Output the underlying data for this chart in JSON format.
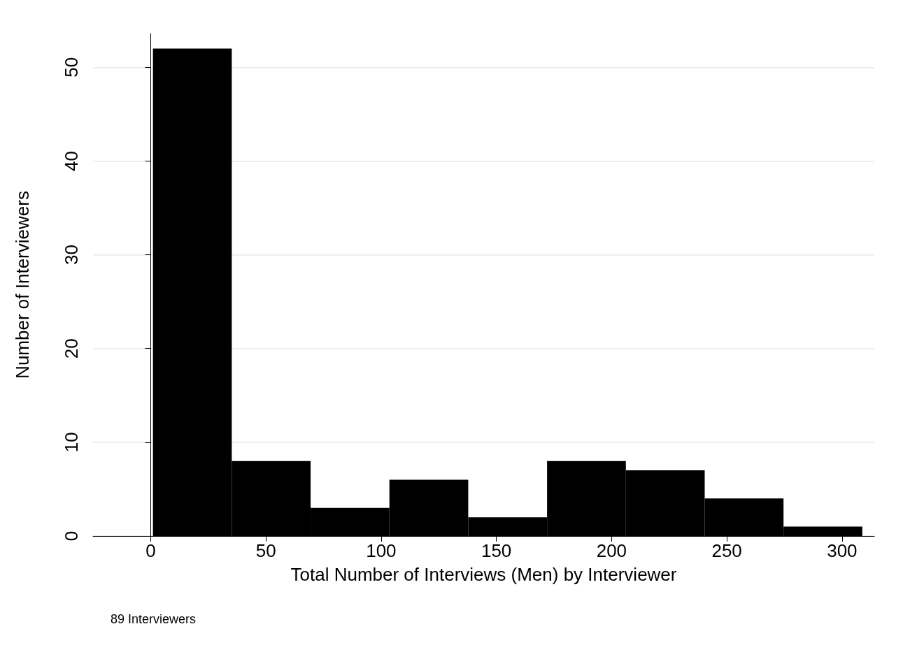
{
  "chart_data": {
    "type": "histogram",
    "xlabel": "Total Number of Interviews (Men) by Interviewer",
    "ylabel": "Number of Interviewers",
    "bins": [
      1,
      35.2,
      69.4,
      103.6,
      137.8,
      172,
      206.2,
      240.4,
      274.6,
      308.8
    ],
    "values": [
      52,
      8,
      3,
      6,
      2,
      8,
      7,
      4,
      1
    ],
    "color": "#000000",
    "xlim": [
      -25,
      314
    ],
    "xticks": [
      0,
      50,
      100,
      150,
      200,
      250,
      300
    ],
    "ylim": [
      0,
      53.6
    ],
    "yticks": [
      0,
      10,
      20,
      30,
      40,
      50
    ],
    "grid": "y",
    "annotations": [
      "89 Interviewers"
    ]
  }
}
